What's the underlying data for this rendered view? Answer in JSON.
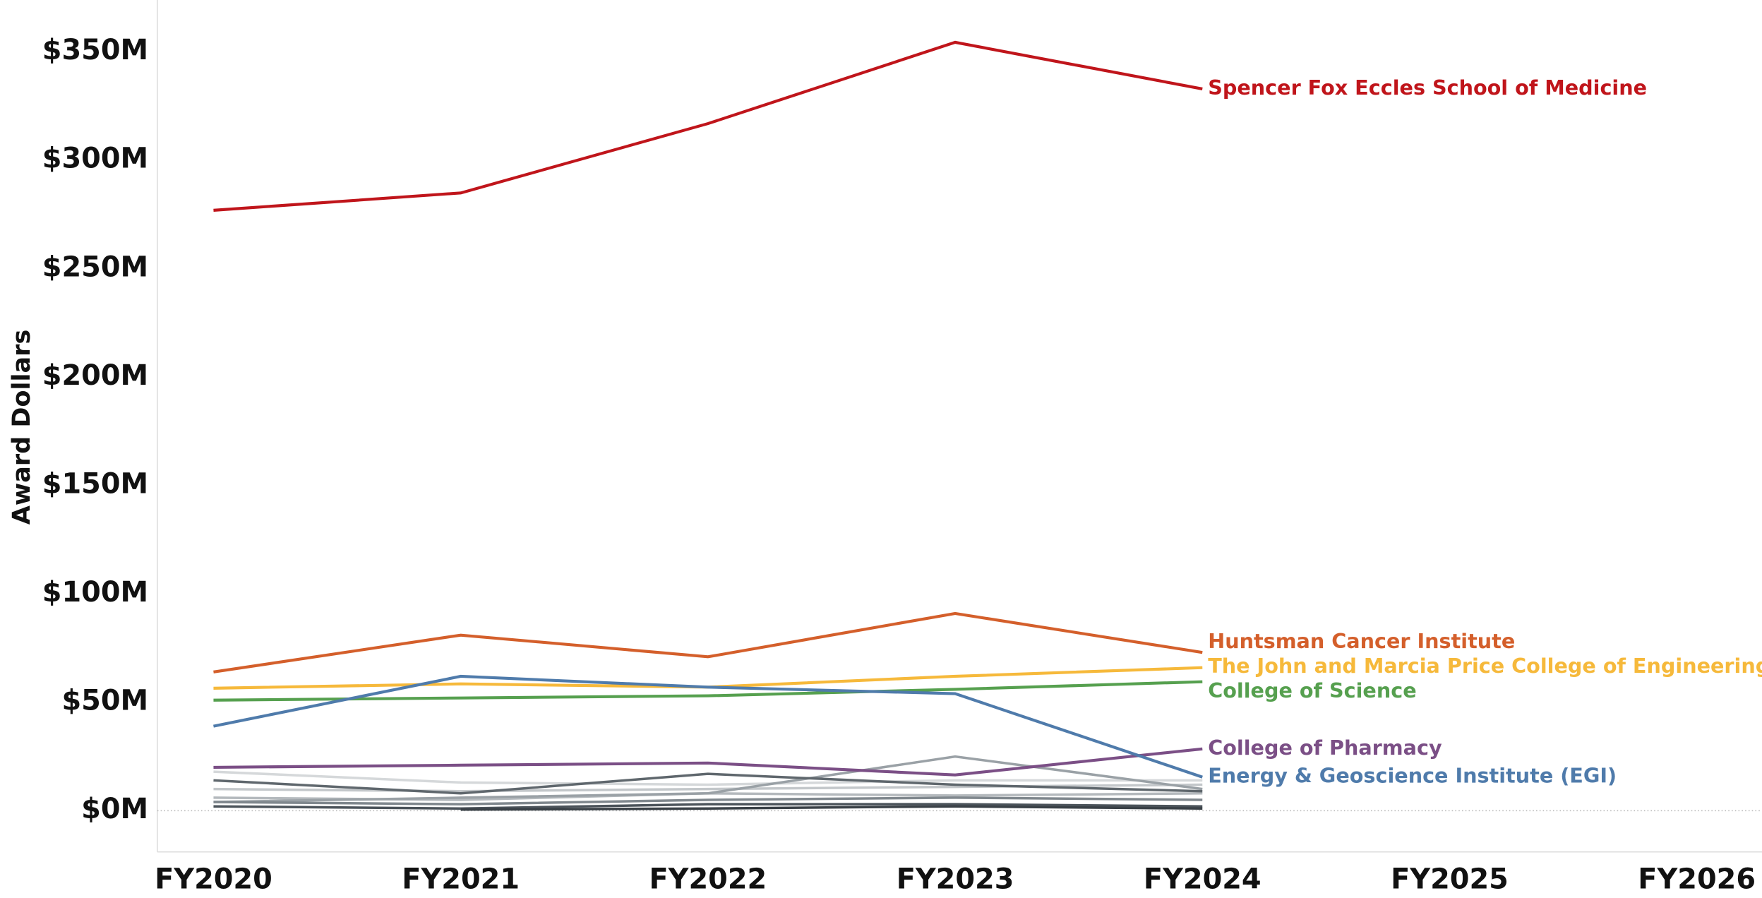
{
  "chart_data": {
    "type": "line",
    "y_label": "Award Dollars",
    "categories": [
      "FY2020",
      "FY2021",
      "FY2022",
      "FY2023",
      "FY2024",
      "FY2025",
      "FY2026"
    ],
    "ylim": [
      -19,
      374
    ],
    "yticks": [
      {
        "value": 0,
        "label": "$0M"
      },
      {
        "value": 50,
        "label": "$50M"
      },
      {
        "value": 100,
        "label": "$100M"
      },
      {
        "value": 150,
        "label": "$150M"
      },
      {
        "value": 200,
        "label": "$200M"
      },
      {
        "value": 250,
        "label": "$250M"
      },
      {
        "value": 300,
        "label": "$300M"
      },
      {
        "value": 350,
        "label": "$350M"
      }
    ],
    "series": [
      {
        "color": "#d5d8da",
        "values": [
          18,
          13,
          12,
          14,
          14,
          null,
          null
        ]
      },
      {
        "color": "#c3c7ca",
        "values": [
          10,
          9,
          10,
          11,
          12,
          null,
          null
        ]
      },
      {
        "color": "#b4b9bd",
        "values": [
          6,
          5,
          8,
          7,
          8,
          null,
          null
        ]
      },
      {
        "color": "#9aa1a6",
        "values": [
          4,
          6,
          8,
          25,
          10,
          null,
          null
        ]
      },
      {
        "color": "#7f878d",
        "values": [
          4,
          3,
          5,
          6,
          5,
          null,
          null
        ]
      },
      {
        "color": "#5f676d",
        "values": [
          14,
          8,
          17,
          12,
          9,
          null,
          null
        ]
      },
      {
        "color": "#4b535a",
        "values": [
          2,
          1,
          3,
          3,
          2,
          null,
          null
        ]
      },
      {
        "color": "#3a4147",
        "values": [
          null,
          0.5,
          1,
          2,
          1,
          null,
          null
        ]
      },
      {
        "name": "Spencer Fox Eccles School of Medicine",
        "color": "#c0151b",
        "values": [
          277,
          285,
          317,
          354.5,
          333,
          null,
          null
        ]
      },
      {
        "name": "Huntsman Cancer Institute",
        "color": "#d45f2b",
        "values": [
          64,
          81,
          71,
          91,
          73,
          null,
          null
        ]
      },
      {
        "name": "The John and Marcia Price College of Engineering",
        "color": "#f6b93b",
        "values": [
          56.5,
          58.5,
          57,
          62,
          66,
          null,
          null
        ]
      },
      {
        "name": "College of Science",
        "color": "#56a04f",
        "values": [
          51,
          52,
          53,
          56,
          59.5,
          null,
          null
        ]
      },
      {
        "name": "College of Pharmacy",
        "color": "#7b4f86",
        "values": [
          20,
          21,
          22,
          16.5,
          28.5,
          null,
          null
        ]
      },
      {
        "name": "Energy & Geoscience Institute (EGI)",
        "color": "#4f7bab",
        "values": [
          39,
          62,
          57,
          54,
          15.5,
          null,
          null
        ]
      }
    ]
  }
}
